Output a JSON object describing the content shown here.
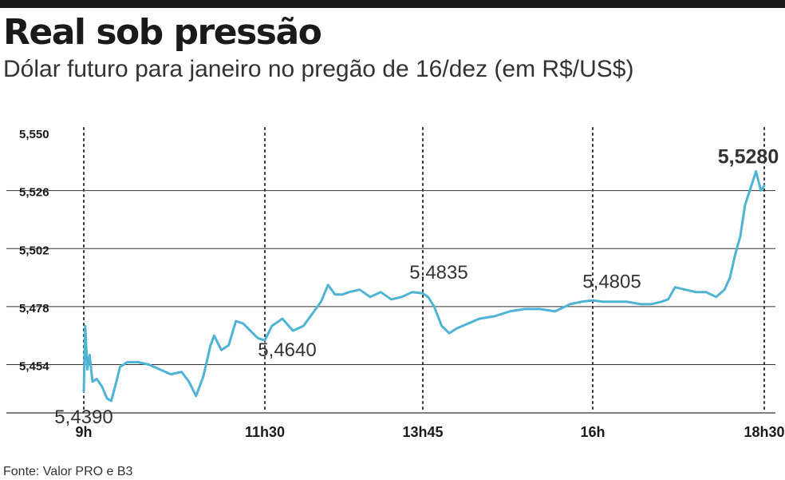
{
  "title": "Real sob pressão",
  "subtitle": "Dólar futuro para janeiro no pregão de 16/dez (em R$/US$)",
  "source": "Fonte: Valor PRO e B3",
  "colors": {
    "line": "#4fb3d4",
    "grid": "#333333",
    "text": "#1a1a1a",
    "topbar": "#1a1a1a"
  },
  "chart_data": {
    "type": "line",
    "title": "Real sob pressão",
    "subtitle": "Dólar futuro para janeiro no pregão de 16/dez (em R$/US$)",
    "xlabel": "",
    "ylabel": "",
    "x_ticks": [
      "9h",
      "11h30",
      "13h45",
      "16h",
      "18h30"
    ],
    "x_tick_values": [
      9.0,
      11.5,
      13.75,
      16.0,
      18.5
    ],
    "xlim": [
      8.0,
      19.0
    ],
    "y_ticks": [
      "5,550",
      "5,526",
      "5,502",
      "5,478",
      "5,454"
    ],
    "y_tick_values": [
      5.55,
      5.526,
      5.502,
      5.478,
      5.454
    ],
    "ylim": [
      5.434,
      5.552
    ],
    "grid": true,
    "annotations": [
      {
        "label": "5,4390",
        "x": 9.0,
        "y": 5.439,
        "bold": false
      },
      {
        "label": "5,4640",
        "x": 11.5,
        "y": 5.464,
        "bold": false
      },
      {
        "label": "5,4835",
        "x": 13.75,
        "y": 5.4835,
        "bold": false
      },
      {
        "label": "5,4805",
        "x": 16.0,
        "y": 5.4805,
        "bold": false
      },
      {
        "label": "5,5280",
        "x": 18.5,
        "y": 5.528,
        "bold": true
      }
    ],
    "series": [
      {
        "x": [
          9.0,
          9.02,
          9.05,
          9.08,
          9.12,
          9.18,
          9.25,
          9.32,
          9.38,
          9.45,
          9.5,
          9.6,
          9.75,
          9.9,
          10.05,
          10.2,
          10.35,
          10.45,
          10.55,
          10.65,
          10.75,
          10.8,
          10.9,
          11.0,
          11.1,
          11.2,
          11.3,
          11.4,
          11.5,
          11.6,
          11.75,
          11.9,
          12.05,
          12.2,
          12.3,
          12.4,
          12.5,
          12.6,
          12.7,
          12.85,
          13.0,
          13.15,
          13.3,
          13.45,
          13.6,
          13.75,
          13.82,
          13.9,
          14.0,
          14.1,
          14.2,
          14.35,
          14.5,
          14.7,
          14.9,
          15.1,
          15.3,
          15.5,
          15.7,
          15.85,
          16.0,
          16.15,
          16.3,
          16.5,
          16.7,
          16.85,
          17.0,
          17.1,
          17.2,
          17.35,
          17.5,
          17.65,
          17.8,
          17.92,
          18.0,
          18.08,
          18.15,
          18.22,
          18.3,
          18.38,
          18.45,
          18.5
        ],
        "y": [
          5.443,
          5.47,
          5.452,
          5.458,
          5.447,
          5.448,
          5.445,
          5.44,
          5.439,
          5.447,
          5.453,
          5.455,
          5.455,
          5.454,
          5.452,
          5.45,
          5.451,
          5.447,
          5.441,
          5.449,
          5.462,
          5.466,
          5.46,
          5.462,
          5.472,
          5.471,
          5.468,
          5.465,
          5.464,
          5.47,
          5.473,
          5.468,
          5.47,
          5.476,
          5.48,
          5.487,
          5.483,
          5.483,
          5.484,
          5.485,
          5.482,
          5.484,
          5.481,
          5.482,
          5.484,
          5.4835,
          5.482,
          5.478,
          5.47,
          5.467,
          5.469,
          5.471,
          5.473,
          5.474,
          5.476,
          5.477,
          5.477,
          5.476,
          5.479,
          5.48,
          5.4805,
          5.48,
          5.48,
          5.48,
          5.479,
          5.479,
          5.48,
          5.481,
          5.486,
          5.485,
          5.484,
          5.484,
          5.482,
          5.485,
          5.49,
          5.5,
          5.507,
          5.52,
          5.527,
          5.534,
          5.526,
          5.528
        ]
      }
    ]
  }
}
